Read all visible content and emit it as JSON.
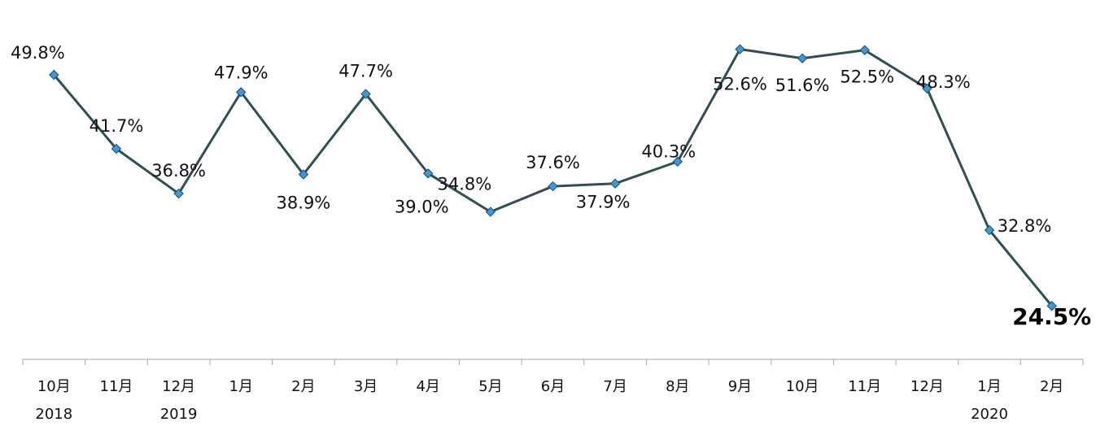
{
  "chart_data": {
    "type": "line",
    "title": "",
    "xlabel": "",
    "ylabel": "",
    "categories": [
      "10月",
      "11月",
      "12月",
      "1月",
      "2月",
      "3月",
      "4月",
      "5月",
      "6月",
      "7月",
      "8月",
      "9月",
      "10月",
      "11月",
      "12月",
      "1月",
      "2月"
    ],
    "year_labels": [
      {
        "category_index": 0,
        "text": "2018"
      },
      {
        "category_index": 2,
        "text": "2019"
      },
      {
        "category_index": 15,
        "text": "2020"
      }
    ],
    "series": [
      {
        "values": [
          49.8,
          41.7,
          36.8,
          47.9,
          38.9,
          47.7,
          39.0,
          34.8,
          37.6,
          37.9,
          40.3,
          52.6,
          51.6,
          52.5,
          48.3,
          32.8,
          24.5
        ],
        "labels": [
          "49.8%",
          "41.7%",
          "36.8%",
          "47.9%",
          "38.9%",
          "47.7%",
          "39.0%",
          "34.8%",
          "37.6%",
          "37.9%",
          "40.3%",
          "52.6%",
          "51.6%",
          "52.5%",
          "48.3%",
          "32.8%",
          "24.5%"
        ],
        "highlight_index": 16,
        "line_color": "#2f4f55",
        "marker_color": "#3a9ad9",
        "marker_shape": "diamond"
      }
    ],
    "grid": false,
    "legend": "none",
    "axis_color": "#a6a6a6"
  }
}
